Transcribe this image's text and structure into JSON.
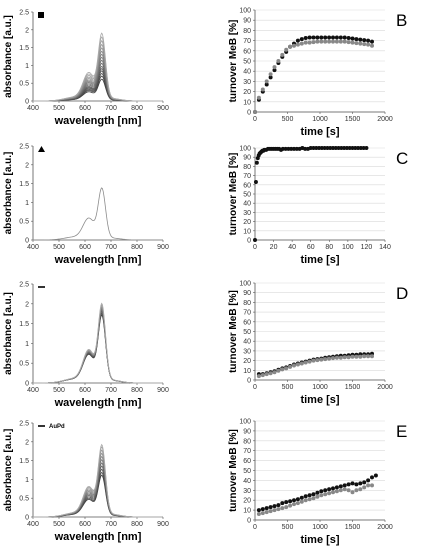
{
  "colors": {
    "black": "#111111",
    "gray": "#888888",
    "axis": "#555555",
    "grid": "#d9d9d9"
  },
  "chart_data": [
    {
      "id": "spec_B",
      "type": "line",
      "legend_symbol": "square",
      "xlabel": "wavelength [nm]",
      "ylabel": "absorbance [a.u.]",
      "xlim": [
        400,
        900
      ],
      "ylim": [
        0,
        2.5
      ],
      "xticks": [
        400,
        500,
        600,
        700,
        800,
        900
      ],
      "yticks": [
        0,
        0.5,
        1,
        1.5,
        2,
        2.5
      ],
      "peak_scales": [
        0.58,
        0.66,
        0.73,
        0.8,
        0.86,
        0.92,
        1.0,
        1.08,
        1.16,
        1.24,
        1.32,
        1.41,
        1.5,
        1.6,
        1.7,
        1.8
      ]
    },
    {
      "id": "kin_B",
      "type": "scatter",
      "panel_label": "B",
      "xlabel": "time [s]",
      "ylabel": "turnover MeB [%]",
      "xlim": [
        0,
        2000
      ],
      "ylim": [
        0,
        100
      ],
      "xticks": [
        0,
        500,
        1000,
        1500,
        2000
      ],
      "yticks": [
        0,
        10,
        20,
        30,
        40,
        50,
        60,
        70,
        80,
        90,
        100
      ],
      "series": [
        {
          "color": "black",
          "x": [
            0,
            60,
            120,
            180,
            240,
            300,
            360,
            420,
            480,
            540,
            600,
            660,
            720,
            780,
            840,
            900,
            960,
            1020,
            1080,
            1140,
            1200,
            1260,
            1320,
            1380,
            1440,
            1500,
            1560,
            1620,
            1680,
            1740,
            1800
          ],
          "y": [
            0,
            12,
            20,
            27,
            34,
            41,
            48,
            54,
            59,
            64,
            67,
            70,
            71.5,
            72.5,
            73,
            73,
            73,
            73,
            73,
            73,
            73,
            73,
            73,
            73,
            72.5,
            72,
            71.5,
            71,
            70.5,
            70,
            69
          ]
        },
        {
          "color": "gray",
          "x": [
            0,
            60,
            120,
            180,
            240,
            300,
            360,
            420,
            480,
            540,
            600,
            660,
            720,
            780,
            840,
            900,
            960,
            1020,
            1080,
            1140,
            1200,
            1260,
            1320,
            1380,
            1440,
            1500,
            1560,
            1620,
            1680,
            1740,
            1800
          ],
          "y": [
            0,
            14,
            22,
            30,
            37,
            44,
            50,
            56,
            61,
            64,
            65,
            66,
            67,
            68,
            68,
            68.5,
            69,
            69,
            69,
            69,
            69,
            69,
            69,
            69,
            68.5,
            68,
            67.5,
            67,
            66.5,
            66,
            65
          ]
        }
      ]
    },
    {
      "id": "spec_C",
      "type": "line",
      "legend_symbol": "triangle",
      "xlabel": "wavelength [nm]",
      "ylabel": "absorbance [a.u.]",
      "xlim": [
        400,
        900
      ],
      "ylim": [
        0,
        2.5
      ],
      "xticks": [
        400,
        500,
        600,
        700,
        800,
        900
      ],
      "yticks": [
        0,
        0.5,
        1,
        1.5,
        2,
        2.5
      ],
      "peak_scales": [
        1.31
      ]
    },
    {
      "id": "kin_C",
      "type": "scatter",
      "panel_label": "C",
      "xlabel": "time [s]",
      "ylabel": "turnover MeB [%]",
      "xlim": [
        0,
        140
      ],
      "ylim": [
        0,
        100
      ],
      "xticks": [
        0,
        20,
        40,
        60,
        80,
        100,
        120,
        140
      ],
      "yticks": [
        0,
        10,
        20,
        30,
        40,
        50,
        60,
        70,
        80,
        90,
        100
      ],
      "series": [
        {
          "color": "black",
          "x": [
            0,
            1,
            2,
            3,
            4,
            5,
            6,
            7,
            8,
            9,
            10,
            12,
            14,
            16,
            18,
            20,
            22,
            24,
            26,
            28,
            30,
            33,
            36,
            39,
            42,
            45,
            48,
            51,
            54,
            57,
            60,
            63,
            66,
            69,
            72,
            75,
            78,
            81,
            84,
            87,
            90,
            93,
            96,
            99,
            102,
            105,
            108,
            111,
            114,
            117,
            120
          ],
          "y": [
            0,
            63,
            84,
            89,
            92,
            94,
            95,
            96,
            97,
            97,
            98,
            98,
            99,
            99,
            99,
            99,
            99,
            99,
            99,
            98,
            99,
            99,
            99,
            99,
            99,
            99,
            99,
            100,
            99,
            99,
            100,
            100,
            100,
            100,
            100,
            100,
            100,
            100,
            100,
            100,
            100,
            100,
            100,
            100,
            100,
            100,
            100,
            100,
            100,
            100,
            100
          ]
        }
      ]
    },
    {
      "id": "spec_D",
      "type": "line",
      "legend_symbol": "dash",
      "xlabel": "wavelength [nm]",
      "ylabel": "absorbance [a.u.]",
      "xlim": [
        400,
        900
      ],
      "ylim": [
        0,
        2.5
      ],
      "xticks": [
        400,
        500,
        600,
        700,
        800,
        900
      ],
      "yticks": [
        0,
        0.5,
        1,
        1.5,
        2,
        2.5
      ],
      "peak_scales": [
        1.62,
        1.66,
        1.7,
        1.73,
        1.76,
        1.79,
        1.82,
        1.86,
        1.9
      ]
    },
    {
      "id": "kin_D",
      "type": "scatter",
      "panel_label": "D",
      "xlabel": "time [s]",
      "ylabel": "turnover MeB [%]",
      "xlim": [
        0,
        2000
      ],
      "ylim": [
        0,
        100
      ],
      "xticks": [
        0,
        500,
        1000,
        1500,
        2000
      ],
      "yticks": [
        0,
        10,
        20,
        30,
        40,
        50,
        60,
        70,
        80,
        90,
        100
      ],
      "series": [
        {
          "color": "black",
          "x": [
            60,
            120,
            180,
            240,
            300,
            360,
            420,
            480,
            540,
            600,
            660,
            720,
            780,
            840,
            900,
            960,
            1020,
            1080,
            1140,
            1200,
            1260,
            1320,
            1380,
            1440,
            1500,
            1560,
            1620,
            1680,
            1740,
            1800
          ],
          "y": [
            6,
            6,
            7,
            8,
            9,
            10.5,
            12,
            13,
            14.5,
            16,
            17,
            18,
            19,
            20,
            21,
            21.5,
            22,
            23,
            23.5,
            24,
            24.5,
            25,
            25,
            25.5,
            26,
            26,
            26.5,
            26.5,
            26.5,
            27
          ]
        },
        {
          "color": "gray",
          "x": [
            60,
            120,
            180,
            240,
            300,
            360,
            420,
            480,
            540,
            600,
            660,
            720,
            780,
            840,
            900,
            960,
            1020,
            1080,
            1140,
            1200,
            1260,
            1320,
            1380,
            1440,
            1500,
            1560,
            1620,
            1680,
            1740,
            1800
          ],
          "y": [
            4,
            5,
            6,
            7,
            8,
            9.5,
            11,
            12,
            13.5,
            15,
            16,
            17,
            18,
            19,
            20,
            20.5,
            21,
            21.5,
            22,
            22.5,
            23,
            23,
            23.5,
            23.5,
            24,
            24,
            24,
            24.5,
            24.5,
            24.5
          ]
        }
      ]
    },
    {
      "id": "spec_E",
      "type": "line",
      "legend_symbol": "dash",
      "legend_label": "AuPd",
      "xlabel": "wavelength [nm]",
      "ylabel": "absorbance [a.u.]",
      "xlim": [
        400,
        900
      ],
      "ylim": [
        0,
        2.5
      ],
      "xticks": [
        400,
        500,
        600,
        700,
        800,
        900
      ],
      "yticks": [
        0,
        0.5,
        1,
        1.5,
        2,
        2.5
      ],
      "peak_scales": [
        1.05,
        1.12,
        1.2,
        1.28,
        1.36,
        1.44,
        1.52,
        1.6,
        1.68,
        1.76,
        1.82
      ]
    },
    {
      "id": "kin_E",
      "type": "scatter",
      "panel_label": "E",
      "xlabel": "time [s]",
      "ylabel": "turnover MeB [%]",
      "xlim": [
        0,
        2000
      ],
      "ylim": [
        0,
        100
      ],
      "xticks": [
        0,
        500,
        1000,
        1500,
        2000
      ],
      "yticks": [
        0,
        10,
        20,
        30,
        40,
        50,
        60,
        70,
        80,
        90,
        100
      ],
      "series": [
        {
          "color": "black",
          "x": [
            60,
            120,
            180,
            240,
            300,
            360,
            420,
            480,
            540,
            600,
            660,
            720,
            780,
            840,
            900,
            960,
            1020,
            1080,
            1140,
            1200,
            1260,
            1320,
            1380,
            1440,
            1500,
            1560,
            1620,
            1680,
            1740,
            1800,
            1860
          ],
          "y": [
            10,
            11,
            12,
            13,
            14,
            15,
            17,
            18,
            19,
            20,
            21,
            22.5,
            24,
            25,
            26,
            27.5,
            29,
            30,
            31,
            32,
            33,
            34,
            35,
            36,
            37,
            36,
            37,
            38,
            40,
            43,
            45
          ]
        },
        {
          "color": "gray",
          "x": [
            60,
            120,
            180,
            240,
            300,
            360,
            420,
            480,
            540,
            600,
            660,
            720,
            780,
            840,
            900,
            960,
            1020,
            1080,
            1140,
            1200,
            1260,
            1320,
            1380,
            1440,
            1500,
            1560,
            1620,
            1680,
            1740,
            1800
          ],
          "y": [
            6,
            7,
            8,
            9,
            10,
            11,
            12,
            13,
            14.5,
            16,
            17,
            18.5,
            20,
            21,
            22,
            23.5,
            25,
            26,
            27,
            28,
            29,
            30,
            31,
            30,
            28,
            30,
            31,
            33,
            35,
            35
          ]
        }
      ]
    }
  ]
}
